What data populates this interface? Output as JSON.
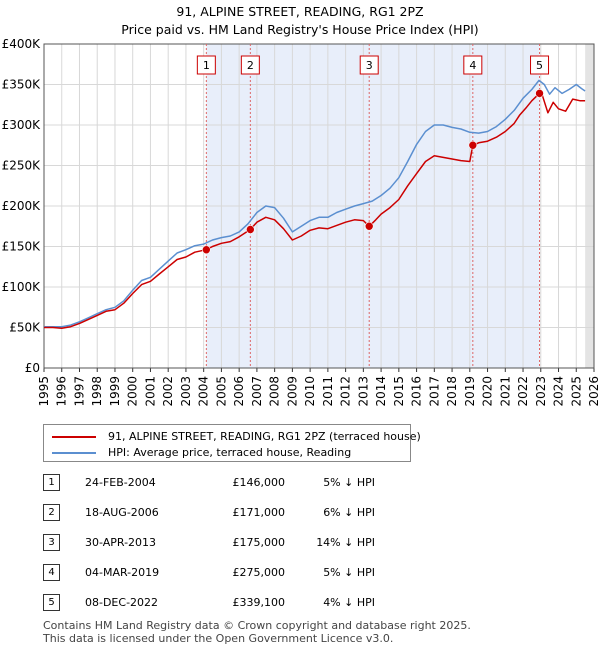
{
  "chart_data": {
    "type": "line",
    "title": "91, ALPINE STREET, READING, RG1 2PZ",
    "subtitle": "Price paid vs. HM Land Registry's House Price Index (HPI)",
    "xlim": [
      1995,
      2026
    ],
    "ylim": [
      0,
      400000
    ],
    "x_ticks": [
      "1995",
      "1996",
      "1997",
      "1998",
      "1999",
      "2000",
      "2001",
      "2002",
      "2003",
      "2004",
      "2005",
      "2006",
      "2007",
      "2008",
      "2009",
      "2010",
      "2011",
      "2012",
      "2013",
      "2014",
      "2015",
      "2016",
      "2017",
      "2018",
      "2019",
      "2020",
      "2021",
      "2022",
      "2023",
      "2024",
      "2025",
      "2026"
    ],
    "y_ticks": [
      {
        "value": 0,
        "label": "£0"
      },
      {
        "value": 50000,
        "label": "£50K"
      },
      {
        "value": 100000,
        "label": "£100K"
      },
      {
        "value": 150000,
        "label": "£150K"
      },
      {
        "value": 200000,
        "label": "£200K"
      },
      {
        "value": 250000,
        "label": "£250K"
      },
      {
        "value": 300000,
        "label": "£300K"
      },
      {
        "value": 350000,
        "label": "£350K"
      },
      {
        "value": 400000,
        "label": "£400K"
      }
    ],
    "grid": true,
    "series": [
      {
        "name": "91, ALPINE STREET, READING, RG1 2PZ (terraced house)",
        "color": "#cc0000",
        "points": [
          [
            1995.0,
            50000
          ],
          [
            1995.5,
            50000
          ],
          [
            1996.0,
            49000
          ],
          [
            1996.5,
            51000
          ],
          [
            1997.0,
            55000
          ],
          [
            1997.5,
            60000
          ],
          [
            1998.0,
            65000
          ],
          [
            1998.5,
            70000
          ],
          [
            1999.0,
            72000
          ],
          [
            1999.5,
            80000
          ],
          [
            2000.0,
            92000
          ],
          [
            2000.5,
            103000
          ],
          [
            2001.0,
            107000
          ],
          [
            2001.5,
            116000
          ],
          [
            2002.0,
            125000
          ],
          [
            2002.5,
            134000
          ],
          [
            2003.0,
            137000
          ],
          [
            2003.5,
            143000
          ],
          [
            2004.15,
            146000
          ],
          [
            2004.5,
            150000
          ],
          [
            2005.0,
            154000
          ],
          [
            2005.5,
            156000
          ],
          [
            2006.0,
            162000
          ],
          [
            2006.63,
            171000
          ],
          [
            2007.0,
            180000
          ],
          [
            2007.5,
            186000
          ],
          [
            2008.0,
            183000
          ],
          [
            2008.5,
            172000
          ],
          [
            2009.0,
            158000
          ],
          [
            2009.5,
            163000
          ],
          [
            2010.0,
            170000
          ],
          [
            2010.5,
            173000
          ],
          [
            2011.0,
            172000
          ],
          [
            2011.5,
            176000
          ],
          [
            2012.0,
            180000
          ],
          [
            2012.5,
            183000
          ],
          [
            2013.0,
            182000
          ],
          [
            2013.33,
            175000
          ],
          [
            2013.7,
            183000
          ],
          [
            2014.0,
            190000
          ],
          [
            2014.5,
            198000
          ],
          [
            2015.0,
            208000
          ],
          [
            2015.5,
            225000
          ],
          [
            2016.0,
            240000
          ],
          [
            2016.5,
            255000
          ],
          [
            2017.0,
            262000
          ],
          [
            2017.5,
            260000
          ],
          [
            2018.0,
            258000
          ],
          [
            2018.5,
            256000
          ],
          [
            2019.0,
            255000
          ],
          [
            2019.17,
            275000
          ],
          [
            2019.5,
            278000
          ],
          [
            2020.0,
            280000
          ],
          [
            2020.5,
            285000
          ],
          [
            2021.0,
            292000
          ],
          [
            2021.5,
            302000
          ],
          [
            2021.8,
            312000
          ],
          [
            2022.2,
            322000
          ],
          [
            2022.5,
            330000
          ],
          [
            2022.93,
            339100
          ],
          [
            2023.1,
            336000
          ],
          [
            2023.4,
            315000
          ],
          [
            2023.7,
            328000
          ],
          [
            2024.0,
            320000
          ],
          [
            2024.4,
            317000
          ],
          [
            2024.8,
            332000
          ],
          [
            2025.2,
            330000
          ],
          [
            2025.5,
            330000
          ]
        ]
      },
      {
        "name": "HPI: Average price, terraced house, Reading",
        "color": "#5b8fd0",
        "points": [
          [
            1995.0,
            51000
          ],
          [
            1995.5,
            51000
          ],
          [
            1996.0,
            51000
          ],
          [
            1996.5,
            53000
          ],
          [
            1997.0,
            57000
          ],
          [
            1997.5,
            62000
          ],
          [
            1998.0,
            67000
          ],
          [
            1998.5,
            72000
          ],
          [
            1999.0,
            75000
          ],
          [
            1999.5,
            83000
          ],
          [
            2000.0,
            96000
          ],
          [
            2000.5,
            108000
          ],
          [
            2001.0,
            112000
          ],
          [
            2001.5,
            122000
          ],
          [
            2002.0,
            132000
          ],
          [
            2002.5,
            142000
          ],
          [
            2003.0,
            146000
          ],
          [
            2003.5,
            151000
          ],
          [
            2004.0,
            153000
          ],
          [
            2004.5,
            158000
          ],
          [
            2005.0,
            161000
          ],
          [
            2005.5,
            163000
          ],
          [
            2006.0,
            168000
          ],
          [
            2006.5,
            178000
          ],
          [
            2007.0,
            192000
          ],
          [
            2007.5,
            200000
          ],
          [
            2008.0,
            198000
          ],
          [
            2008.5,
            185000
          ],
          [
            2009.0,
            168000
          ],
          [
            2009.5,
            175000
          ],
          [
            2010.0,
            182000
          ],
          [
            2010.5,
            186000
          ],
          [
            2011.0,
            186000
          ],
          [
            2011.5,
            192000
          ],
          [
            2012.0,
            196000
          ],
          [
            2012.5,
            200000
          ],
          [
            2013.0,
            203000
          ],
          [
            2013.5,
            206000
          ],
          [
            2014.0,
            213000
          ],
          [
            2014.5,
            222000
          ],
          [
            2015.0,
            235000
          ],
          [
            2015.5,
            255000
          ],
          [
            2016.0,
            276000
          ],
          [
            2016.5,
            292000
          ],
          [
            2017.0,
            300000
          ],
          [
            2017.5,
            300000
          ],
          [
            2018.0,
            297000
          ],
          [
            2018.5,
            295000
          ],
          [
            2019.0,
            291000
          ],
          [
            2019.5,
            290000
          ],
          [
            2020.0,
            292000
          ],
          [
            2020.5,
            298000
          ],
          [
            2021.0,
            307000
          ],
          [
            2021.5,
            318000
          ],
          [
            2022.0,
            333000
          ],
          [
            2022.5,
            344000
          ],
          [
            2022.9,
            355000
          ],
          [
            2023.2,
            350000
          ],
          [
            2023.5,
            338000
          ],
          [
            2023.8,
            346000
          ],
          [
            2024.2,
            339000
          ],
          [
            2024.6,
            344000
          ],
          [
            2025.0,
            350000
          ],
          [
            2025.3,
            345000
          ],
          [
            2025.5,
            342000
          ]
        ]
      }
    ],
    "sales": [
      {
        "label": "1",
        "date": "24-FEB-2004",
        "x": 2004.15,
        "price": 146000
      },
      {
        "label": "2",
        "date": "18-AUG-2006",
        "x": 2006.63,
        "price": 171000
      },
      {
        "label": "3",
        "date": "30-APR-2013",
        "x": 2013.33,
        "price": 175000
      },
      {
        "label": "4",
        "date": "04-MAR-2019",
        "x": 2019.17,
        "price": 275000
      },
      {
        "label": "5",
        "date": "08-DEC-2022",
        "x": 2022.93,
        "price": 339100
      }
    ]
  },
  "legend": {
    "items": [
      {
        "label": "91, ALPINE STREET, READING, RG1 2PZ (terraced house)",
        "color": "#cc0000"
      },
      {
        "label": "HPI: Average price, terraced house, Reading",
        "color": "#5b8fd0"
      }
    ]
  },
  "table": {
    "rows": [
      {
        "num": "1",
        "date": "24-FEB-2004",
        "price": "£146,000",
        "pct": "5% ↓ HPI"
      },
      {
        "num": "2",
        "date": "18-AUG-2006",
        "price": "£171,000",
        "pct": "6% ↓ HPI"
      },
      {
        "num": "3",
        "date": "30-APR-2013",
        "price": "£175,000",
        "pct": "14% ↓ HPI"
      },
      {
        "num": "4",
        "date": "04-MAR-2019",
        "price": "£275,000",
        "pct": "5% ↓ HPI"
      },
      {
        "num": "5",
        "date": "08-DEC-2022",
        "price": "£339,100",
        "pct": "4% ↓ HPI"
      }
    ]
  },
  "footer": {
    "line1": "Contains HM Land Registry data © Crown copyright and database right 2025.",
    "line2": "This data is licensed under the Open Government Licence v3.0."
  }
}
